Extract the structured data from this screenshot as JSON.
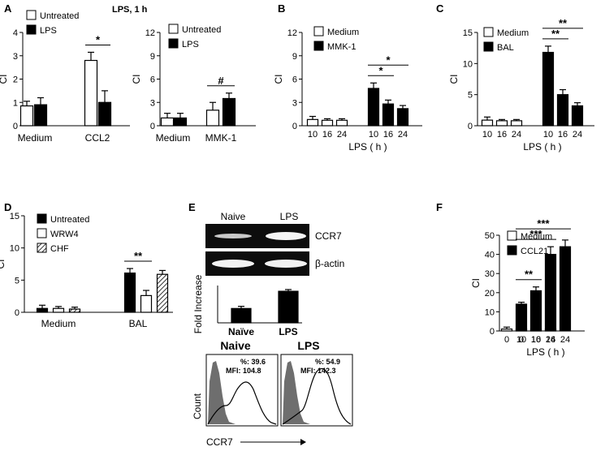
{
  "page_title": "LPS, 1 h",
  "panels": [
    {
      "id": "A"
    },
    {
      "id": "B"
    },
    {
      "id": "C"
    },
    {
      "id": "D"
    },
    {
      "id": "E"
    },
    {
      "id": "F"
    }
  ],
  "chart_data": [
    {
      "id": "A1",
      "type": "bar",
      "ylabel": "CI",
      "ylim": [
        0,
        4
      ],
      "yticks": [
        0,
        1,
        2,
        3,
        4
      ],
      "title": "LPS, 1 h",
      "categories": [
        "Medium",
        "CCL2"
      ],
      "series": [
        {
          "name": "Untreated",
          "values": [
            0.85,
            2.8
          ],
          "errors": [
            0.2,
            0.35
          ],
          "color": "#ffffff"
        },
        {
          "name": "LPS",
          "values": [
            0.9,
            1.0
          ],
          "errors": [
            0.3,
            0.5
          ],
          "color": "#000000"
        }
      ],
      "annotations": [
        {
          "text": "*",
          "from": "CCL2.Untreated",
          "to": "CCL2.LPS"
        }
      ],
      "legend": "top-left"
    },
    {
      "id": "A2",
      "type": "bar",
      "ylabel": "CI",
      "ylim": [
        0,
        12
      ],
      "yticks": [
        0,
        3,
        6,
        9,
        12
      ],
      "categories": [
        "Medium",
        "MMK-1"
      ],
      "series": [
        {
          "name": "Untreated",
          "values": [
            1.0,
            2.0
          ],
          "errors": [
            0.6,
            1.0
          ],
          "color": "#ffffff"
        },
        {
          "name": "LPS",
          "values": [
            1.0,
            3.5
          ],
          "errors": [
            0.6,
            0.7
          ],
          "color": "#000000"
        }
      ],
      "annotations": [
        {
          "text": "#",
          "from": "MMK-1.Untreated",
          "to": "MMK-1.LPS"
        }
      ],
      "legend": "top-left"
    },
    {
      "id": "B",
      "type": "bar",
      "ylabel": "CI",
      "xlabel": "LPS ( h )",
      "ylim": [
        0,
        12
      ],
      "yticks": [
        0,
        3,
        6,
        9,
        12
      ],
      "groups": [
        {
          "name": "Medium",
          "color": "#ffffff",
          "categories": [
            "10",
            "16",
            "24"
          ],
          "values": [
            0.8,
            0.7,
            0.7
          ],
          "errors": [
            0.4,
            0.2,
            0.2
          ]
        },
        {
          "name": "MMK-1",
          "color": "#000000",
          "categories": [
            "10",
            "16",
            "24"
          ],
          "values": [
            4.8,
            2.8,
            2.2
          ],
          "errors": [
            0.7,
            0.5,
            0.4
          ]
        }
      ],
      "annotations": [
        {
          "text": "*",
          "from": "MMK-1.10",
          "to": "MMK-1.16"
        },
        {
          "text": "*",
          "from": "MMK-1.10",
          "to": "MMK-1.24"
        }
      ],
      "legend": "top-left"
    },
    {
      "id": "C",
      "type": "bar",
      "ylabel": "CI",
      "xlabel": "LPS ( h )",
      "ylim": [
        0,
        15
      ],
      "yticks": [
        0,
        5,
        10,
        15
      ],
      "groups": [
        {
          "name": "Medium",
          "color": "#ffffff",
          "categories": [
            "10",
            "16",
            "24"
          ],
          "values": [
            0.9,
            0.8,
            0.8
          ],
          "errors": [
            0.5,
            0.2,
            0.2
          ]
        },
        {
          "name": "BAL",
          "color": "#000000",
          "categories": [
            "10",
            "16",
            "24"
          ],
          "values": [
            11.8,
            5.0,
            3.2
          ],
          "errors": [
            1.0,
            0.8,
            0.5
          ]
        }
      ],
      "annotations": [
        {
          "text": "**",
          "from": "BAL.10",
          "to": "BAL.16"
        },
        {
          "text": "**",
          "from": "BAL.10",
          "to": "BAL.24"
        }
      ],
      "legend": "top-left"
    },
    {
      "id": "D",
      "type": "bar",
      "ylabel": "CI",
      "ylim": [
        0,
        15
      ],
      "yticks": [
        0,
        5,
        10,
        15
      ],
      "categories": [
        "Medium",
        "BAL"
      ],
      "series": [
        {
          "name": "Untreated",
          "values": [
            0.6,
            6.1
          ],
          "errors": [
            0.5,
            0.7
          ],
          "color": "#000000"
        },
        {
          "name": "WRW4",
          "values": [
            0.6,
            2.6
          ],
          "errors": [
            0.3,
            0.8
          ],
          "color": "#ffffff"
        },
        {
          "name": "CHF",
          "values": [
            0.5,
            5.9
          ],
          "errors": [
            0.3,
            0.6
          ],
          "color": "hatched"
        }
      ],
      "annotations": [
        {
          "text": "**",
          "from": "BAL.Untreated",
          "to": "BAL.WRW4"
        }
      ],
      "legend": "top-left"
    },
    {
      "id": "E",
      "type": "bar",
      "ylabel": "Fold Increase",
      "categories": [
        "Naïve",
        "LPS"
      ],
      "values": [
        1.0,
        2.2
      ],
      "errors": [
        0.15,
        0.12
      ],
      "gel": {
        "labels": [
          "Naive",
          "LPS"
        ],
        "rows": [
          "CCR7",
          "β-actin"
        ]
      },
      "flow": {
        "xlabel": "CCR7",
        "ylabel": "Count",
        "panels": [
          {
            "title": "Naive",
            "percent": "%: 39.6",
            "mfi": "MFI: 104.8"
          },
          {
            "title": "LPS",
            "percent": "%: 54.9",
            "mfi": "MFI: 142.3"
          }
        ]
      }
    },
    {
      "id": "F",
      "type": "bar",
      "ylabel": "CI",
      "xlabel": "LPS ( h )",
      "ylim": [
        0,
        50
      ],
      "yticks": [
        0,
        10,
        20,
        30,
        40,
        50
      ],
      "groups": [
        {
          "name": "Medium",
          "color": "#ffffff",
          "categories": [
            "0",
            "10",
            "16",
            "24"
          ],
          "values": [
            1.0,
            1.0,
            1.0,
            1.0
          ],
          "errors": [
            1.0,
            1.0,
            1.0,
            1.0
          ]
        },
        {
          "name": "CCL21",
          "color": "#000000",
          "categories": [
            "0",
            "10",
            "16",
            "24"
          ],
          "values": [
            14,
            21,
            40,
            44
          ],
          "errors": [
            1.0,
            2.0,
            4.0,
            3.5
          ]
        }
      ],
      "annotations": [
        {
          "text": "**",
          "from": "CCL21.0",
          "to": "CCL21.10"
        },
        {
          "text": "***",
          "from": "CCL21.0",
          "to": "CCL21.16"
        },
        {
          "text": "***",
          "from": "CCL21.0",
          "to": "CCL21.24"
        }
      ],
      "legend": "top-left"
    }
  ]
}
